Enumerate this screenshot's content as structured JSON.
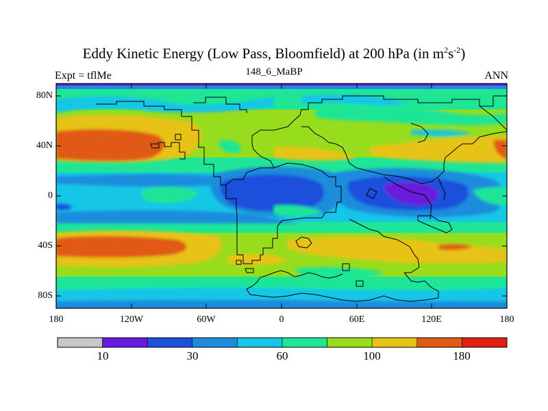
{
  "title": {
    "main": "Eddy Kinetic Energy (Low Pass, Bloomfield) at 200 hPa (in m",
    "exp1": "2",
    "mid": "s",
    "exp2": "-2",
    "close": ")"
  },
  "subtitle_left": "Expt = tflMe",
  "subtitle_center": "148_6_MaBP",
  "subtitle_right": "ANN",
  "lat_labels": [
    "80N",
    "40N",
    "0",
    "40S",
    "80S"
  ],
  "lon_labels": [
    "180",
    "120W",
    "60W",
    "0",
    "60E",
    "120E",
    "180"
  ],
  "colorbar": {
    "colors": [
      "#c8c8c8",
      "#6a1adc",
      "#1e50dc",
      "#1e8cdc",
      "#16c6e6",
      "#1ee696",
      "#98dc1e",
      "#e6c316",
      "#e05a14",
      "#e01e14"
    ],
    "labels": [
      "10",
      "30",
      "60",
      "100",
      "180"
    ]
  },
  "map_colors": {
    "ocean_base": "#16c6e6",
    "green": "#1ee696",
    "lime": "#98dc1e",
    "yellow": "#e6c316",
    "orange": "#e05a14",
    "blue": "#1e8cdc",
    "dark_blue": "#1e50dc",
    "purple": "#6a1adc",
    "frame_top": "#6a1adc"
  }
}
